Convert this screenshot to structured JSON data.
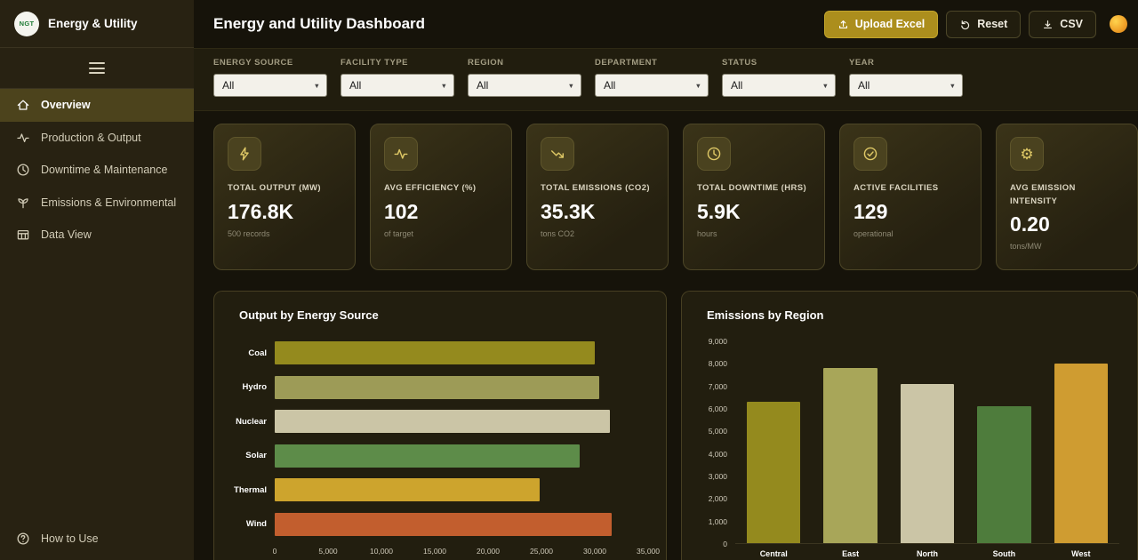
{
  "sidebar": {
    "logo_text": "NGT",
    "brand": "Energy & Utility",
    "items": [
      {
        "label": "Overview",
        "icon": "home",
        "active": true
      },
      {
        "label": "Production & Output",
        "icon": "activity"
      },
      {
        "label": "Downtime & Maintenance",
        "icon": "clock"
      },
      {
        "label": "Emissions & Environmental",
        "icon": "sprout"
      },
      {
        "label": "Data View",
        "icon": "table"
      }
    ],
    "footer_item": "How to Use"
  },
  "header": {
    "title": "Energy and Utility Dashboard",
    "upload_label": "Upload Excel",
    "reset_label": "Reset",
    "csv_label": "CSV"
  },
  "filters": [
    {
      "label": "ENERGY SOURCE",
      "value": "All"
    },
    {
      "label": "FACILITY TYPE",
      "value": "All"
    },
    {
      "label": "REGION",
      "value": "All"
    },
    {
      "label": "DEPARTMENT",
      "value": "All"
    },
    {
      "label": "STATUS",
      "value": "All"
    },
    {
      "label": "YEAR",
      "value": "All"
    }
  ],
  "kpis": [
    {
      "icon": "bolt-icon",
      "label": "TOTAL OUTPUT (MW)",
      "value": "176.8K",
      "sub": "500 records"
    },
    {
      "icon": "pulse-icon",
      "label": "AVG EFFICIENCY (%)",
      "value": "102",
      "sub": "of target"
    },
    {
      "icon": "trend-down-icon",
      "label": "TOTAL EMISSIONS (CO2)",
      "value": "35.3K",
      "sub": "tons CO2"
    },
    {
      "icon": "clock-icon",
      "label": "TOTAL DOWNTIME (HRS)",
      "value": "5.9K",
      "sub": "hours"
    },
    {
      "icon": "check-circle-icon",
      "label": "ACTIVE FACILITIES",
      "value": "129",
      "sub": "operational"
    },
    {
      "icon": "gear-icon",
      "label": "AVG EMISSION INTENSITY",
      "value": "0.20",
      "sub": "tons/MW"
    }
  ],
  "colors": {
    "accent_gold": "#ac8e1d",
    "sidebar_active": "#4c431c",
    "card_border": "#4d4627"
  },
  "chart_data": [
    {
      "type": "bar",
      "orientation": "horizontal",
      "title": "Output by Energy Source",
      "categories": [
        "Coal",
        "Hydro",
        "Nuclear",
        "Solar",
        "Thermal",
        "Wind"
      ],
      "values": [
        30000,
        30400,
        31400,
        28600,
        24800,
        31600
      ],
      "colors": [
        "#948a1e",
        "#9d9b57",
        "#cbc5a6",
        "#5d8c49",
        "#cda42d",
        "#c25e2e"
      ],
      "xlabel": "",
      "ylabel": "",
      "xlim": [
        0,
        35000
      ],
      "xticks": [
        "0",
        "5,000",
        "10,000",
        "15,000",
        "20,000",
        "25,000",
        "30,000",
        "35,000"
      ],
      "grid": false,
      "legend": false
    },
    {
      "type": "bar",
      "orientation": "vertical",
      "title": "Emissions by Region",
      "categories": [
        "Central",
        "East",
        "North",
        "South",
        "West"
      ],
      "values": [
        6300,
        7800,
        7100,
        6100,
        8000
      ],
      "colors": [
        "#948a1e",
        "#a8a659",
        "#cbc5a6",
        "#4e7c3c",
        "#cf9c31"
      ],
      "xlabel": "",
      "ylabel": "",
      "ylim": [
        0,
        9000
      ],
      "yticks": [
        "0",
        "1,000",
        "2,000",
        "3,000",
        "4,000",
        "5,000",
        "6,000",
        "7,000",
        "8,000",
        "9,000"
      ],
      "grid": false,
      "legend": false
    }
  ]
}
